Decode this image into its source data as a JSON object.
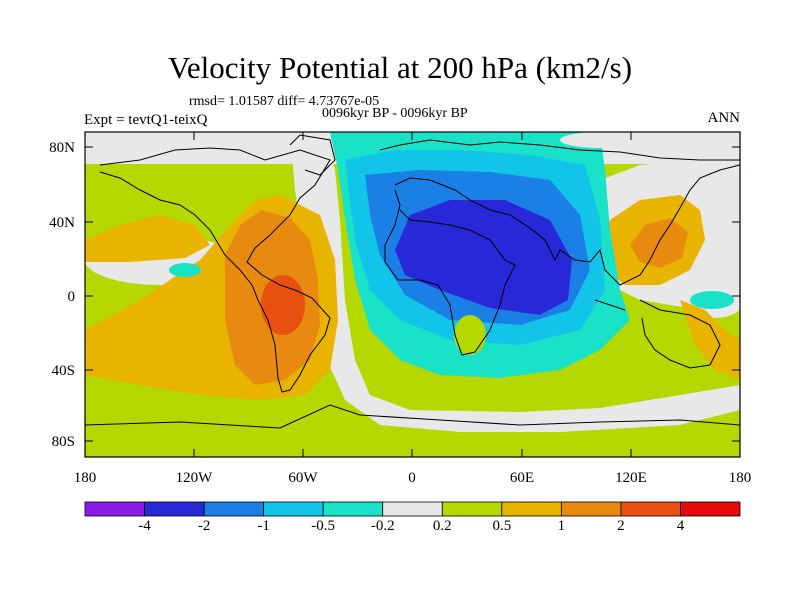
{
  "title": "Velocity Potential at 200 hPa (km2/s)",
  "stats": "rmsd= 1.01587 diff= 4.73767e-05",
  "period": "0096kyr BP - 0096kyr BP",
  "expt": "Expt = tevtQ1-teixQ",
  "season": "ANN",
  "lat_ticks": [
    "80N",
    "40N",
    "0",
    "40S",
    "80S"
  ],
  "lon_ticks": [
    "180",
    "120W",
    "60W",
    "0",
    "60E",
    "120E",
    "180"
  ],
  "colorbar": {
    "labels": [
      "-4",
      "-2",
      "-1",
      "-0.5",
      "-0.2",
      "0.2",
      "0.5",
      "1",
      "2",
      "4"
    ],
    "colors": [
      "#8a1ae6",
      "#2828d8",
      "#1a80e6",
      "#12c4e8",
      "#1ae2c8",
      "#e8e8e8",
      "#b4d800",
      "#e8b400",
      "#e88a10",
      "#e85010",
      "#e60a0a"
    ]
  }
}
